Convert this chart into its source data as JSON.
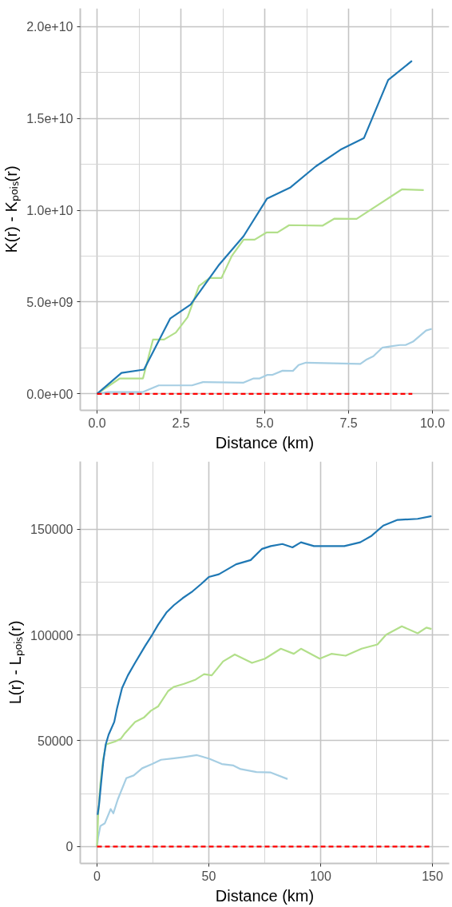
{
  "chart_data": [
    {
      "type": "line",
      "xlabel": "Distance (km)",
      "ylabel": "K(r) - Kₚₒᵢₛ(r)",
      "grid": true,
      "xlim": [
        -0.5,
        10.5
      ],
      "xticks": [
        {
          "value": 0,
          "label": "0.0"
        },
        2.5,
        {
          "value": 5,
          "label": "5.0"
        },
        7.5,
        {
          "value": 10,
          "label": "10.0"
        }
      ],
      "ylim": [
        -900000000,
        21000000000
      ],
      "yticks": [
        {
          "value": 0,
          "label": "0.0e+00"
        },
        {
          "value": 5000000000,
          "label": "5.0e+09"
        },
        {
          "value": 10000000000,
          "label": "1.0e+10"
        },
        {
          "value": 15000000000,
          "label": "1.5e+10"
        },
        {
          "value": 20000000000,
          "label": "2.0e+10"
        }
      ],
      "series": [
        {
          "color": "#a6cee3",
          "x": [
            0,
            0.33,
            1.37,
            1.84,
            2.83,
            3.16,
            4.37,
            4.67,
            4.85,
            5.07,
            5.22,
            5.53,
            5.84,
            6.01,
            6.23,
            7.85,
            8.02,
            8.24,
            8.5,
            8.72,
            9.03,
            9.2,
            9.42,
            9.81,
            9.98
          ],
          "values": [
            0,
            100000000,
            100000000,
            460000000,
            460000000,
            640000000,
            610000000,
            840000000,
            840000000,
            1030000000,
            1030000000,
            1260000000,
            1250000000,
            1570000000,
            1700000000,
            1630000000,
            1850000000,
            2050000000,
            2510000000,
            2580000000,
            2660000000,
            2660000000,
            2840000000,
            3450000000,
            3540000000
          ]
        },
        {
          "color": "#b2df8a",
          "x": [
            0,
            0.68,
            1.37,
            1.67,
            2.0,
            2.35,
            2.7,
            3.04,
            3.36,
            3.71,
            4.02,
            4.37,
            4.7,
            5.05,
            5.38,
            5.73,
            6.72,
            7.07,
            7.74,
            9.09,
            9.74
          ],
          "values": [
            0,
            840000000,
            840000000,
            2960000000,
            2960000000,
            3340000000,
            4180000000,
            5880000000,
            6310000000,
            6310000000,
            7520000000,
            8400000000,
            8400000000,
            8790000000,
            8790000000,
            9190000000,
            9160000000,
            9540000000,
            9530000000,
            11140000000,
            11100000000
          ]
        },
        {
          "color": "#1f78b4",
          "x": [
            0,
            0.73,
            1.4,
            2.18,
            2.79,
            3.62,
            4.37,
            5.07,
            5.77,
            6.52,
            7.26,
            7.96,
            8.68,
            9.39
          ],
          "values": [
            0,
            1140000000,
            1320000000,
            4100000000,
            4860000000,
            6990000000,
            8590000000,
            10640000000,
            11250000000,
            12390000000,
            13300000000,
            13940000000,
            17100000000,
            18140000000
          ]
        },
        {
          "color": "#ff0000",
          "line_style": "dashed",
          "x": [
            0,
            9.4
          ],
          "values": [
            0,
            0
          ]
        }
      ]
    },
    {
      "type": "line",
      "xlabel": "Distance (km)",
      "ylabel": "L(r) - Lₚₒᵢₛ(r)",
      "grid": true,
      "xlim": [
        -7.5,
        157.5
      ],
      "xticks": [
        0,
        50,
        100,
        150
      ],
      "ylim": [
        -8000,
        182000
      ],
      "yticks": [
        0,
        50000,
        100000,
        150000
      ],
      "series": [
        {
          "color": "#a6cee3",
          "x": [
            0,
            0.5,
            1.5,
            3.5,
            6.1,
            7.3,
            9.3,
            13.1,
            16.4,
            20.2,
            24.7,
            28.6,
            33.8,
            38.9,
            44.7,
            50,
            55.8,
            61,
            64.2,
            71.3,
            77.7,
            85.2
          ],
          "values": [
            0,
            4400,
            9700,
            11000,
            17700,
            15700,
            22300,
            32300,
            33600,
            37000,
            39000,
            41000,
            41600,
            42300,
            43200,
            41600,
            39000,
            38300,
            36600,
            35200,
            35000,
            31900
          ]
        },
        {
          "color": "#b2df8a",
          "x": [
            0,
            0.5,
            1.5,
            2.8,
            4.1,
            8,
            10.6,
            12.5,
            17,
            20.9,
            24.1,
            27.3,
            31.8,
            34.4,
            38.9,
            44.1,
            47.9,
            51.3,
            56.4,
            61.6,
            69.3,
            75.1,
            82.2,
            88,
            91.2,
            99.6,
            104.8,
            111.2,
            118.3,
            125.4,
            129.3,
            136.3,
            143.4,
            147.3,
            149.6
          ],
          "values": [
            0,
            15000,
            29700,
            41600,
            48300,
            49600,
            50900,
            53600,
            58900,
            60900,
            64200,
            66200,
            73500,
            75500,
            76900,
            78900,
            81500,
            80900,
            87500,
            90800,
            86800,
            88800,
            93500,
            91100,
            93500,
            88800,
            91100,
            90200,
            93500,
            95500,
            100100,
            104100,
            100800,
            103500,
            102800
          ]
        },
        {
          "color": "#1f78b4",
          "x": [
            0.26,
            0.9,
            1.8,
            2.8,
            3.9,
            5.2,
            7.7,
            9,
            11.2,
            13.8,
            17,
            21.5,
            24.7,
            27.3,
            31.2,
            34.4,
            38.3,
            42.8,
            46.6,
            50,
            54.5,
            62.2,
            68.7,
            73.8,
            77.7,
            82.9,
            87.4,
            91.2,
            97,
            104.8,
            110.6,
            117.7,
            122.8,
            128,
            134.4,
            143.4,
            149.6
          ],
          "values": [
            15000,
            19700,
            29700,
            40300,
            48300,
            52900,
            58900,
            65600,
            74900,
            80900,
            86800,
            94800,
            100100,
            104800,
            110800,
            114100,
            117400,
            120700,
            124100,
            127400,
            128700,
            133400,
            135400,
            140700,
            142000,
            143000,
            141400,
            143800,
            142000,
            142000,
            142000,
            143800,
            146900,
            151700,
            154400,
            154900,
            156200
          ]
        },
        {
          "color": "#ff0000",
          "line_style": "dashed",
          "x": [
            0,
            150
          ],
          "values": [
            0,
            0
          ]
        }
      ]
    }
  ]
}
